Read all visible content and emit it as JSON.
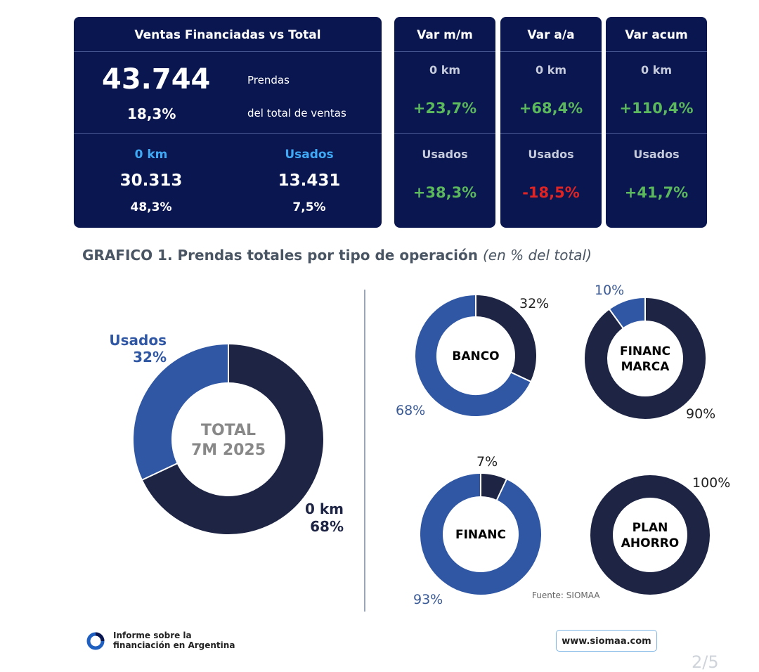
{
  "summary": {
    "title": "Ventas Financiadas vs Total",
    "total_value": "43.744",
    "total_label": "Prendas",
    "share_value": "18,3%",
    "share_label": "del total de ventas",
    "okm": {
      "label": "0 km",
      "value": "30.313",
      "pct": "48,3%"
    },
    "usados": {
      "label": "Usados",
      "value": "13.431",
      "pct": "7,5%"
    }
  },
  "variations": [
    {
      "title": "Var m/m",
      "okm_label": "0 km",
      "okm_value": "+23,7%",
      "usados_label": "Usados",
      "usados_value": "+38,3%"
    },
    {
      "title": "Var a/a",
      "okm_label": "0 km",
      "okm_value": "+68,4%",
      "usados_label": "Usados",
      "usados_value": "-18,5%"
    },
    {
      "title": "Var acum",
      "okm_label": "0 km",
      "okm_value": "+110,4%",
      "usados_label": "Usados",
      "usados_value": "+41,7%"
    }
  ],
  "chart_heading": {
    "title": "GRAFICO 1. Prendas totales por tipo de operación",
    "subtitle": "(en % del total)"
  },
  "chart_data": [
    {
      "type": "pie",
      "center_label": [
        "TOTAL",
        "7M 2025"
      ],
      "categories": [
        "0 km",
        "Usados"
      ],
      "values": [
        68,
        32
      ],
      "labels": [
        "68%",
        "32%"
      ],
      "colors": [
        "#1e2444",
        "#3057a4"
      ]
    },
    {
      "type": "pie",
      "center_label": [
        "BANCO"
      ],
      "categories": [
        "0 km",
        "Usados"
      ],
      "values": [
        32,
        68
      ],
      "labels": [
        "32%",
        "68%"
      ],
      "colors": [
        "#1e2444",
        "#3057a4"
      ]
    },
    {
      "type": "pie",
      "center_label": [
        "FINANC",
        "MARCA"
      ],
      "categories": [
        "0 km",
        "Usados"
      ],
      "values": [
        90,
        10
      ],
      "labels": [
        "90%",
        "10%"
      ],
      "colors": [
        "#1e2444",
        "#3057a4"
      ]
    },
    {
      "type": "pie",
      "center_label": [
        "FINANC"
      ],
      "categories": [
        "0 km",
        "Usados"
      ],
      "values": [
        7,
        93
      ],
      "labels": [
        "7%",
        "93%"
      ],
      "colors": [
        "#1e2444",
        "#3057a4"
      ]
    },
    {
      "type": "pie",
      "center_label": [
        "PLAN",
        "AHORRO"
      ],
      "categories": [
        "0 km",
        "Usados"
      ],
      "values": [
        100,
        0
      ],
      "labels": [
        "100%"
      ],
      "colors": [
        "#1e2444",
        "#3057a4"
      ]
    }
  ],
  "main_labels": {
    "usados_name": "Usados",
    "usados_pct": "32%",
    "okm_name": "0 km",
    "okm_pct": "68%"
  },
  "source": "Fuente: SIOMAA",
  "footer": {
    "line1": "Informe sobre la",
    "line2": "financiación en Argentina",
    "website": "www.siomaa.com",
    "page": "2/5"
  }
}
